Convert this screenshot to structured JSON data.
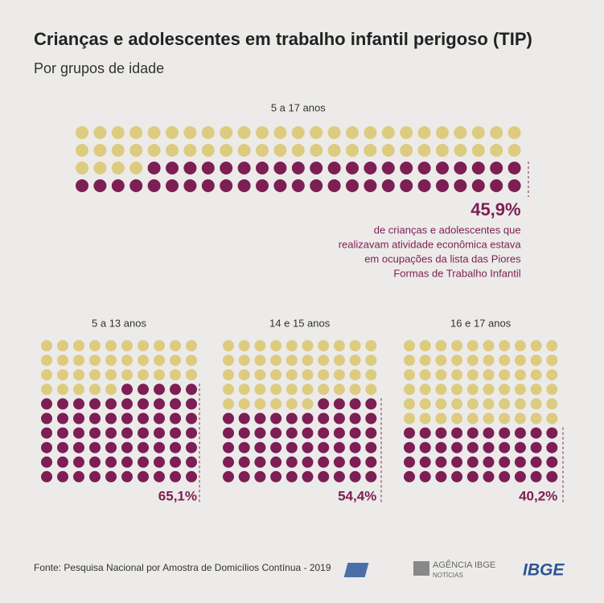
{
  "title": "Crianças e adolescentes em trabalho infantil perigoso (TIP)",
  "subtitle": "Por grupos de idade",
  "source": "Fonte: Pesquisa Nacional por Amostra de Domicílios Contínua - 2019",
  "logos": {
    "agencia": "AGÊNCIA IBGE",
    "noticias": "NOTÍCIAS",
    "ibge": "IBGE"
  },
  "chart_data": [
    {
      "type": "waffle",
      "title": "5 a 17 anos",
      "values": [
        45.9
      ],
      "value_labels": [
        "45,9%"
      ],
      "color": "#7d1e54",
      "empty_color": "#ddcb7f",
      "annotation": [
        "de crianças e adolescentes que",
        "realizavam atividade econômica estava",
        "em ocupações da lista das Piores",
        "Formas de Trabalho Infantil"
      ]
    },
    {
      "type": "waffle",
      "title": "5 a 13 anos",
      "values": [
        65.1
      ],
      "value_labels": [
        "65,1%"
      ],
      "color": "#7d1e54",
      "empty_color": "#ddcb7f"
    },
    {
      "type": "waffle",
      "title": "14 e 15 anos",
      "values": [
        54.4
      ],
      "value_labels": [
        "54,4%"
      ],
      "color": "#7d1e54",
      "empty_color": "#ddcb7f"
    },
    {
      "type": "waffle",
      "title": "16 e 17 anos",
      "values": [
        40.2
      ],
      "value_labels": [
        "40,2%"
      ],
      "color": "#7d1e54",
      "empty_color": "#ddcb7f"
    }
  ]
}
